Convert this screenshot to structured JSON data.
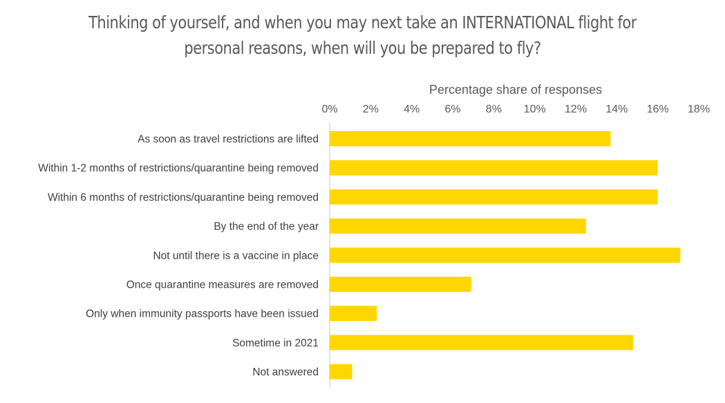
{
  "chart_data": {
    "type": "bar",
    "orientation": "horizontal",
    "title_lines": [
      "Thinking of yourself, and when you may next take an INTERNATIONAL  flight for",
      "personal reasons, when will you be prepared to fly?"
    ],
    "xlabel": "Percentage share of responses",
    "ylabel": "",
    "x_axis_position": "top",
    "xlim": [
      0,
      18
    ],
    "xticks": [
      "0%",
      "2%",
      "4%",
      "6%",
      "8%",
      "10%",
      "12%",
      "14%",
      "16%",
      "18%"
    ],
    "categories": [
      "As soon as travel restrictions are lifted",
      "Within 1-2 months of restrictions/quarantine being removed",
      "Within 6 months of restrictions/quarantine being removed",
      "By the end of the year",
      "Not until there is a vaccine in place",
      "Once quarantine measures are removed",
      "Only when immunity passports have been issued",
      "Sometime in 2021",
      "Not answered"
    ],
    "values": [
      13.7,
      16.0,
      16.0,
      12.5,
      17.1,
      6.9,
      2.3,
      14.8,
      1.1
    ],
    "bar_color": "#FFD700",
    "grid": false,
    "legend": "none"
  }
}
